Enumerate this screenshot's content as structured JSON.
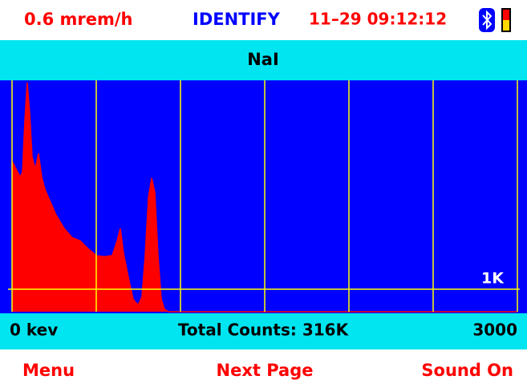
{
  "header": {
    "dose_rate": "0.6 mrem/h",
    "mode": "IDENTIFY",
    "datetime": "11–29 09:12:12"
  },
  "detector": "NaI",
  "total_counts": "Total Counts: 316K",
  "footer": {
    "left": "Menu",
    "center": "Next Page",
    "right": "Sound On"
  },
  "chart_data": {
    "type": "area",
    "x": [
      0,
      24,
      48,
      62,
      76,
      90,
      105,
      119,
      138,
      157,
      176,
      195,
      224,
      262,
      310,
      357,
      405,
      452,
      500,
      548,
      595,
      624,
      643,
      662,
      690,
      719,
      748,
      771,
      790,
      810,
      829,
      848,
      867,
      886,
      905,
      929,
      3000
    ],
    "values": [
      6700,
      6350,
      6000,
      6200,
      8500,
      10200,
      8850,
      6900,
      6350,
      7050,
      6000,
      5450,
      4950,
      4300,
      3700,
      3300,
      3150,
      2800,
      2500,
      2450,
      2500,
      3150,
      3700,
      2600,
      1550,
      550,
      300,
      650,
      2450,
      5100,
      5950,
      5300,
      2450,
      550,
      100,
      0,
      0
    ],
    "color": "#ff0000",
    "background": "#0000ff",
    "grid_color": "#ffff00",
    "xlim": [
      0,
      3000
    ],
    "xticks": [
      {
        "value": 0,
        "label": "0 kev"
      },
      500,
      1000,
      1500,
      2000,
      2500,
      3000
    ],
    "ylim": [
      0,
      10300
    ],
    "yticks": [
      {
        "value": 1000,
        "label": "1K"
      }
    ],
    "grid": true
  }
}
